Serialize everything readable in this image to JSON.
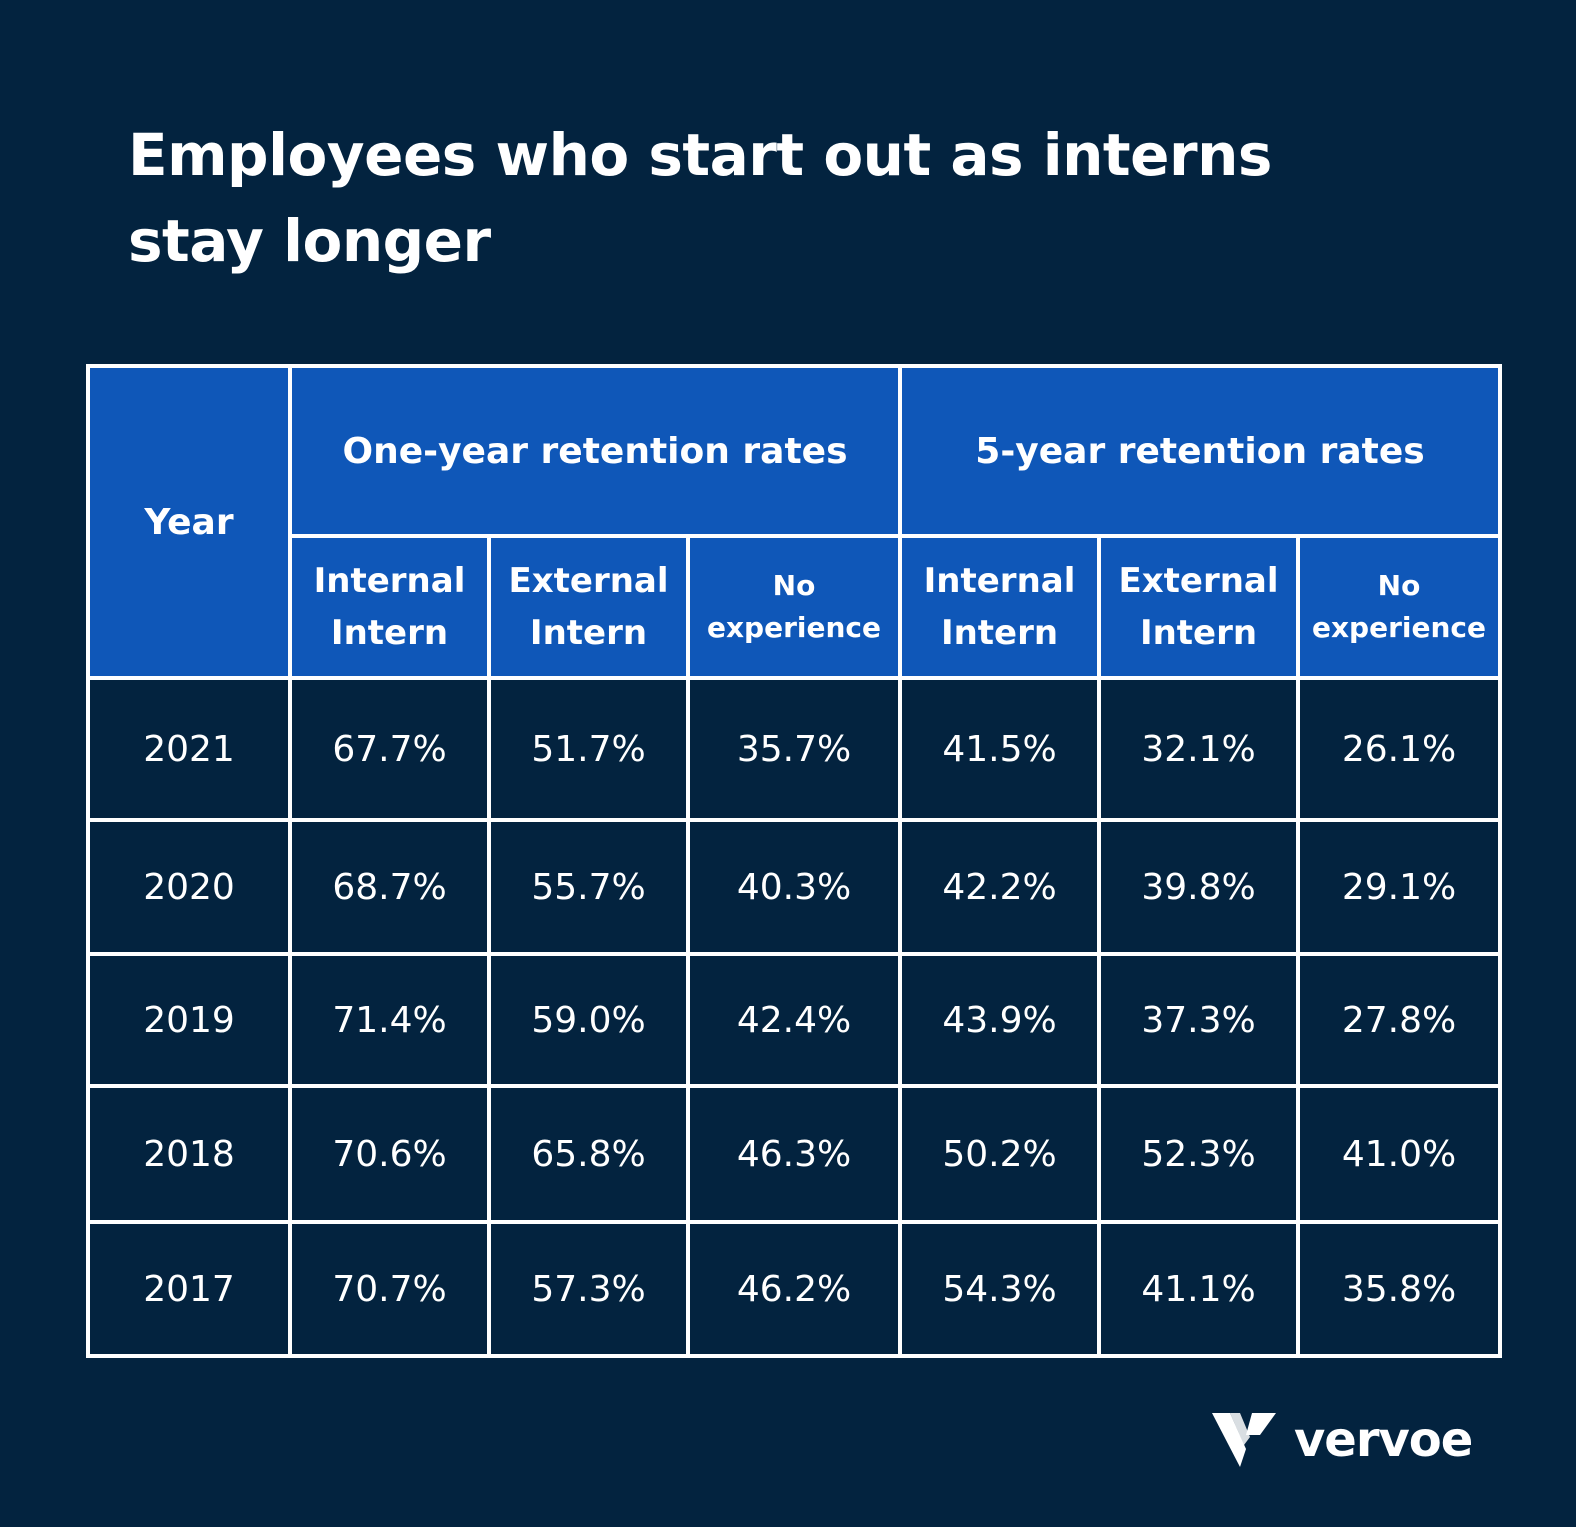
{
  "title": "Employees who start out as interns stay longer",
  "colors": {
    "background": "#03233f",
    "header_fill": "#0f57b8",
    "grid_lines": "#ffffff",
    "text": "#ffffff"
  },
  "brand": {
    "name": "vervoe",
    "icon": "vervoe-v-logo"
  },
  "chart_data": {
    "type": "table",
    "title": "Employees who start out as interns stay longer",
    "row_header": "Year",
    "column_groups": [
      {
        "label": "One-year retention rates",
        "columns": [
          {
            "line1": "Internal",
            "line2": "Intern"
          },
          {
            "line1": "External",
            "line2": "Intern"
          },
          {
            "line1": "No",
            "line2": "experience"
          }
        ]
      },
      {
        "label": "5-year retention rates",
        "columns": [
          {
            "line1": "Internal",
            "line2": "Intern"
          },
          {
            "line1": "External",
            "line2": "Intern"
          },
          {
            "line1": "No",
            "line2": "experience"
          }
        ]
      }
    ],
    "rows": [
      {
        "year": "2021",
        "values": [
          "67.7%",
          "51.7%",
          "35.7%",
          "41.5%",
          "32.1%",
          "26.1%"
        ]
      },
      {
        "year": "2020",
        "values": [
          "68.7%",
          "55.7%",
          "40.3%",
          "42.2%",
          "39.8%",
          "29.1%"
        ]
      },
      {
        "year": "2019",
        "values": [
          "71.4%",
          "59.0%",
          "42.4%",
          "43.9%",
          "37.3%",
          "27.8%"
        ]
      },
      {
        "year": "2018",
        "values": [
          "70.6%",
          "65.8%",
          "46.3%",
          "50.2%",
          "52.3%",
          "41.0%"
        ]
      },
      {
        "year": "2017",
        "values": [
          "70.7%",
          "57.3%",
          "46.2%",
          "54.3%",
          "41.1%",
          "35.8%"
        ]
      }
    ]
  }
}
